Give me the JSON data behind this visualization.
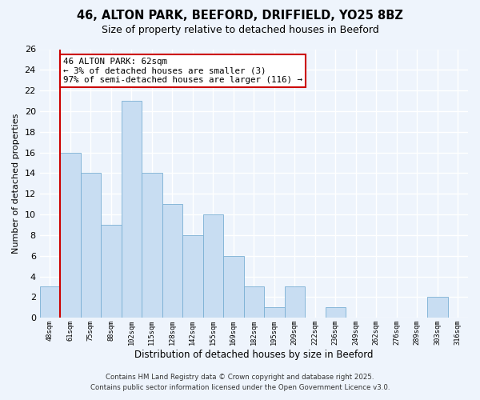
{
  "title": "46, ALTON PARK, BEEFORD, DRIFFIELD, YO25 8BZ",
  "subtitle": "Size of property relative to detached houses in Beeford",
  "xlabel": "Distribution of detached houses by size in Beeford",
  "ylabel": "Number of detached properties",
  "bin_labels": [
    "48sqm",
    "61sqm",
    "75sqm",
    "88sqm",
    "102sqm",
    "115sqm",
    "128sqm",
    "142sqm",
    "155sqm",
    "169sqm",
    "182sqm",
    "195sqm",
    "209sqm",
    "222sqm",
    "236sqm",
    "249sqm",
    "262sqm",
    "276sqm",
    "289sqm",
    "303sqm",
    "316sqm"
  ],
  "bar_heights": [
    3,
    16,
    14,
    9,
    21,
    14,
    11,
    8,
    10,
    6,
    3,
    1,
    3,
    0,
    1,
    0,
    0,
    0,
    0,
    2,
    0
  ],
  "bar_color": "#c8ddf2",
  "bar_edge_color": "#7aafd4",
  "ylim": [
    0,
    26
  ],
  "yticks": [
    0,
    2,
    4,
    6,
    8,
    10,
    12,
    14,
    16,
    18,
    20,
    22,
    24,
    26
  ],
  "property_line_color": "#cc0000",
  "annotation_text": "46 ALTON PARK: 62sqm\n← 3% of detached houses are smaller (3)\n97% of semi-detached houses are larger (116) →",
  "annotation_box_color": "#ffffff",
  "annotation_box_edge_color": "#cc0000",
  "footnote1": "Contains HM Land Registry data © Crown copyright and database right 2025.",
  "footnote2": "Contains public sector information licensed under the Open Government Licence v3.0.",
  "background_color": "#eef4fc",
  "plot_background_color": "#eef4fc",
  "grid_color": "#ffffff"
}
